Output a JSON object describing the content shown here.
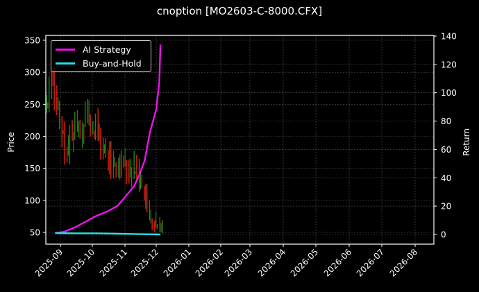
{
  "title": "cnoption [MO2603-C-8000.CFX]",
  "colors": {
    "background": "#000000",
    "ai_strategy": "#ee11ee",
    "buy_and_hold": "#22e0e8",
    "candle_up": "#1a8a1a",
    "candle_down": "#e02010",
    "grid": "#555555",
    "axis": "#ffffff"
  },
  "legend": {
    "items": [
      {
        "label": "AI Strategy",
        "color": "#ee11ee"
      },
      {
        "label": "Buy-and-Hold",
        "color": "#22e0e8"
      }
    ]
  },
  "chart_data": {
    "type": "line",
    "title": "cnoption [MO2603-C-8000.CFX]",
    "xlabel": "",
    "ylabel": "Price",
    "y2label": "Return",
    "ylim": [
      33,
      356
    ],
    "y2lim": [
      -4,
      140
    ],
    "yticks": [
      50,
      100,
      150,
      200,
      250,
      300,
      350
    ],
    "y2ticks": [
      0,
      20,
      40,
      60,
      80,
      100,
      120,
      140
    ],
    "xticks": [
      "2025-09",
      "2025-10",
      "2025-11",
      "2025-12",
      "2026-01",
      "2026-02",
      "2026-03",
      "2026-04",
      "2026-05",
      "2026-06",
      "2026-07",
      "2026-08"
    ],
    "grid": true,
    "legend_position": "upper left",
    "candlestick_price_range": {
      "start": 250,
      "high": 320,
      "low": 50,
      "end": 55
    },
    "series": [
      {
        "name": "AI Strategy",
        "axis": "right",
        "x": [
          "2025-08-27",
          "2025-09-05",
          "2025-09-15",
          "2025-09-25",
          "2025-10-05",
          "2025-10-15",
          "2025-10-25",
          "2025-11-01",
          "2025-11-10",
          "2025-11-15",
          "2025-11-20",
          "2025-11-25",
          "2025-12-01",
          "2025-12-04",
          "2025-12-05"
        ],
        "values": [
          1,
          2,
          5,
          9,
          13,
          16,
          20,
          26,
          34,
          42,
          52,
          72,
          88,
          108,
          134
        ]
      },
      {
        "name": "Buy-and-Hold",
        "axis": "right",
        "x": [
          "2025-08-27",
          "2025-09-15",
          "2025-10-05",
          "2025-10-25",
          "2025-11-15",
          "2025-12-05"
        ],
        "values": [
          1,
          0.8,
          0.8,
          0.5,
          0.2,
          0
        ]
      }
    ]
  }
}
